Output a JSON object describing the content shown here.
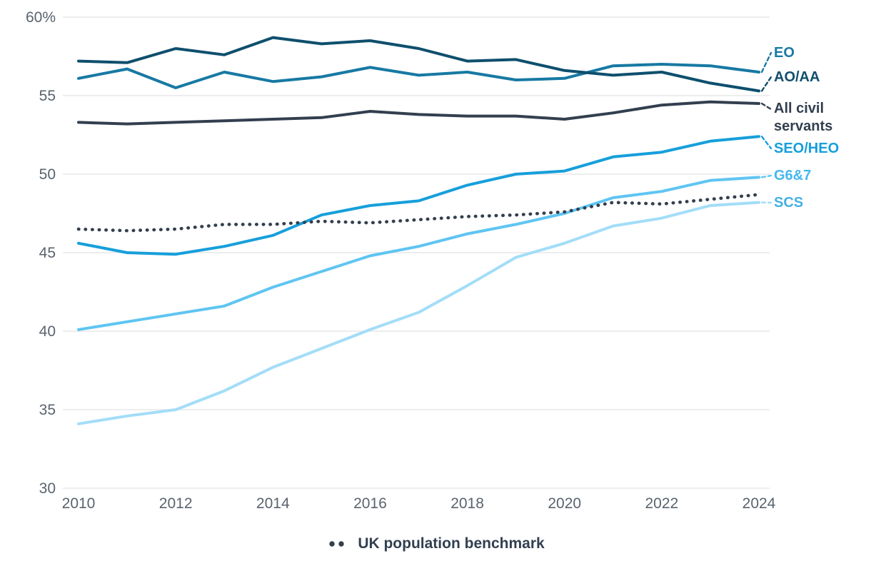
{
  "legend": {
    "benchmark_label": "UK population benchmark"
  },
  "axes": {
    "y_unit_label": "60%",
    "note": ""
  },
  "chart_data": {
    "type": "line",
    "x": [
      2010,
      2011,
      2012,
      2013,
      2014,
      2015,
      2016,
      2017,
      2018,
      2019,
      2020,
      2021,
      2022,
      2023,
      2024
    ],
    "x_ticks": [
      2010,
      2012,
      2014,
      2016,
      2018,
      2020,
      2022,
      2024
    ],
    "y_ticks": [
      {
        "value": 60,
        "label": "60%"
      },
      {
        "value": 55,
        "label": "55"
      },
      {
        "value": 50,
        "label": "50"
      },
      {
        "value": 45,
        "label": "45"
      },
      {
        "value": 40,
        "label": "40"
      },
      {
        "value": 35,
        "label": "35"
      },
      {
        "value": 30,
        "label": "30"
      }
    ],
    "xlim": [
      2010,
      2024
    ],
    "ylim": [
      30,
      60
    ],
    "grid": "horizontal",
    "legend_position": "bottom",
    "series": [
      {
        "name": "SCS",
        "label": "SCS",
        "color": "#a3ddf8",
        "label_color": "#45b0e2",
        "style": "solid",
        "values": [
          34.1,
          34.6,
          35.0,
          36.2,
          37.7,
          38.9,
          40.1,
          41.2,
          42.9,
          44.7,
          45.6,
          46.7,
          47.2,
          48.0,
          48.2
        ]
      },
      {
        "name": "G6&7",
        "label": "G6&7",
        "color": "#5fc5f2",
        "label_color": "#45b8ee",
        "style": "solid",
        "values": [
          40.1,
          40.6,
          41.1,
          41.6,
          42.8,
          43.8,
          44.8,
          45.4,
          46.2,
          46.8,
          47.5,
          48.5,
          48.9,
          49.6,
          49.8
        ]
      },
      {
        "name": "SEO/HEO",
        "label": "SEO/HEO",
        "color": "#169fdb",
        "label_color": "#169fdb",
        "style": "solid",
        "values": [
          45.6,
          45.0,
          44.9,
          45.4,
          46.1,
          47.4,
          48.0,
          48.3,
          49.3,
          50.0,
          50.2,
          51.1,
          51.4,
          52.1,
          52.4
        ]
      },
      {
        "name": "UK population benchmark",
        "label": "UK population benchmark",
        "color": "#333f4d",
        "label_color": "#333f4d",
        "style": "dotted",
        "values": [
          46.5,
          46.4,
          46.5,
          46.8,
          46.8,
          47.0,
          46.9,
          47.1,
          47.3,
          47.4,
          47.6,
          48.2,
          48.1,
          48.4,
          48.7
        ]
      },
      {
        "name": "All civil servants",
        "label": "All civil servants",
        "color": "#323f4f",
        "label_color": "#323f4f",
        "style": "solid",
        "values": [
          53.3,
          53.2,
          53.3,
          53.4,
          53.5,
          53.6,
          54.0,
          53.8,
          53.7,
          53.7,
          53.5,
          53.9,
          54.4,
          54.6,
          54.5
        ]
      },
      {
        "name": "EO",
        "label": "EO",
        "color": "#1779a3",
        "label_color": "#1779a3",
        "style": "solid",
        "values": [
          56.1,
          56.7,
          55.5,
          56.5,
          55.9,
          56.2,
          56.8,
          56.3,
          56.5,
          56.0,
          56.1,
          56.9,
          57.0,
          56.9,
          56.5
        ]
      },
      {
        "name": "AO/AA",
        "label": "AO/AA",
        "color": "#0e4f6d",
        "label_color": "#0e4f6d",
        "style": "solid",
        "values": [
          57.2,
          57.1,
          58.0,
          57.6,
          58.7,
          58.3,
          58.5,
          58.0,
          57.2,
          57.3,
          56.6,
          56.3,
          56.5,
          55.8,
          55.3
        ]
      }
    ]
  }
}
